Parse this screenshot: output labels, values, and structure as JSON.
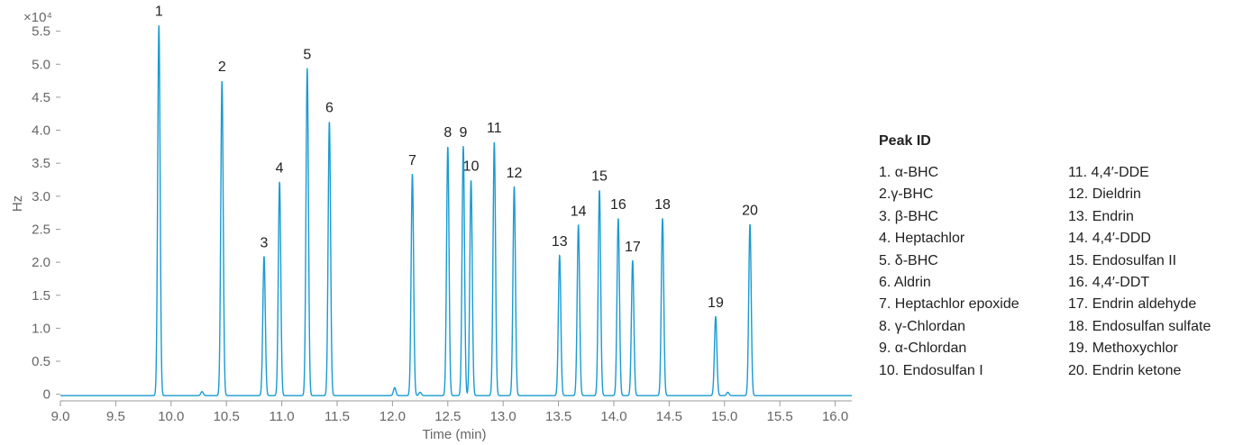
{
  "chart_data": {
    "type": "line",
    "title": "",
    "xlabel": "Time (min)",
    "ylabel": "Hz",
    "y_multiplier_label": "×10⁴",
    "xlim": [
      9.0,
      16.15
    ],
    "ylim": [
      -0.1,
      5.7
    ],
    "x_ticks": [
      "9.0",
      "9.5",
      "10.0",
      "10.5",
      "11.0",
      "11.5",
      "12.0",
      "12.5",
      "13.0",
      "13.5",
      "14.0",
      "14.5",
      "15.0",
      "15.5",
      "16.0"
    ],
    "y_ticks": [
      "0",
      "0.5",
      "1.0",
      "1.5",
      "2.0",
      "2.5",
      "3.0",
      "3.5",
      "4.0",
      "4.5",
      "5.0",
      "5.5"
    ],
    "line_color": "#1a9bd0",
    "baseline": -0.02,
    "peaks": [
      {
        "label": "1",
        "x": 9.89,
        "y": 5.6
      },
      {
        "label": "2",
        "x": 10.46,
        "y": 4.76
      },
      {
        "label": "3",
        "x": 10.84,
        "y": 2.09
      },
      {
        "label": "4",
        "x": 10.98,
        "y": 3.22
      },
      {
        "label": "5",
        "x": 11.23,
        "y": 4.94
      },
      {
        "label": "6",
        "x": 11.43,
        "y": 4.14
      },
      {
        "label": "7",
        "x": 12.18,
        "y": 3.34
      },
      {
        "label": "8",
        "x": 12.5,
        "y": 3.76
      },
      {
        "label": "9",
        "x": 12.64,
        "y": 3.76
      },
      {
        "label": "10",
        "x": 12.71,
        "y": 3.25
      },
      {
        "label": "11",
        "x": 12.92,
        "y": 3.83
      },
      {
        "label": "12",
        "x": 13.1,
        "y": 3.15
      },
      {
        "label": "13",
        "x": 13.51,
        "y": 2.11
      },
      {
        "label": "14",
        "x": 13.68,
        "y": 2.57
      },
      {
        "label": "15",
        "x": 13.87,
        "y": 3.1
      },
      {
        "label": "16",
        "x": 14.04,
        "y": 2.67
      },
      {
        "label": "17",
        "x": 14.17,
        "y": 2.03
      },
      {
        "label": "18",
        "x": 14.44,
        "y": 2.67
      },
      {
        "label": "19",
        "x": 14.92,
        "y": 1.18
      },
      {
        "label": "20",
        "x": 15.23,
        "y": 2.58
      }
    ],
    "minor_peaks": [
      {
        "x": 10.28,
        "y": 0.04
      },
      {
        "x": 12.02,
        "y": 0.1
      },
      {
        "x": 12.25,
        "y": 0.03
      },
      {
        "x": 15.03,
        "y": 0.03
      }
    ]
  },
  "legend": {
    "title": "Peak ID",
    "items_left": [
      "1. α-BHC",
      "2.γ-BHC",
      "3. β-BHC",
      "4. Heptachlor",
      "5. δ-BHC",
      "6. Aldrin",
      "7. Heptachlor epoxide",
      "8. γ-Chlordan",
      "9. α-Chlordan",
      "10. Endosulfan I"
    ],
    "items_right": [
      "11. 4,4′-DDE",
      "12. Dieldrin",
      "13. Endrin",
      "14. 4,4′-DDD",
      "15. Endosulfan II",
      "16. 4,4′-DDT",
      "17. Endrin aldehyde",
      "18. Endosulfan sulfate",
      "19. Methoxychlor",
      "20. Endrin ketone"
    ]
  }
}
